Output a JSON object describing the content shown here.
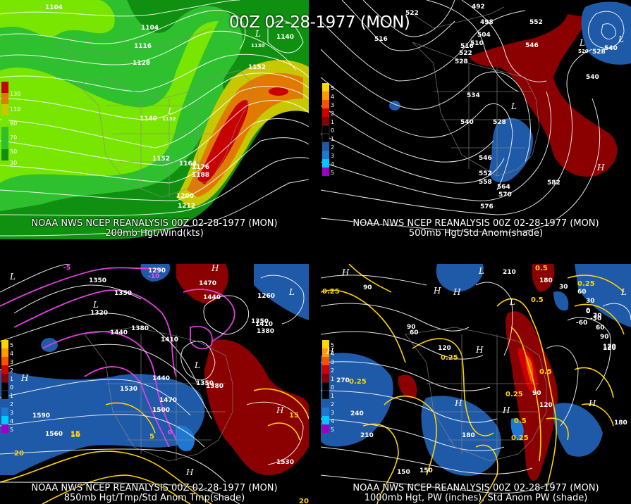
{
  "title": "00Z 02-28-1977 (MON)",
  "panels": [
    {
      "line1": "NOAA NWS NCEP REANALYSIS 00Z 02-28-1977 (MON)",
      "line2": "200mb Hgt/Wind(kts)",
      "colorbar": {
        "labels": [
          "130",
          "110",
          "90",
          "70",
          "50",
          "30"
        ],
        "colors": [
          "#c80000",
          "#e07a00",
          "#c8c800",
          "#78e600",
          "#2fc02f",
          "#109010"
        ]
      },
      "contour_labels": [
        "1104",
        "1104",
        "1116",
        "1128",
        "1140",
        "1130",
        "1140",
        "1152",
        "1152",
        "1164",
        "1176",
        "1188",
        "1200",
        "1212",
        "1132"
      ],
      "pressure_marks": [
        "L",
        "L"
      ]
    },
    {
      "line1": "NOAA NWS NCEP REANALYSIS 00Z 02-28-1977 (MON)",
      "line2": "500mb Hgt/Std Anom(shade)",
      "colorbar": {
        "labels": [
          "5",
          "4",
          "3",
          "2",
          "1",
          "0",
          "1",
          "2",
          "3",
          "4",
          "5"
        ],
        "colors": [
          "#ffd700",
          "#ff9a00",
          "#ff5000",
          "#d00000",
          "#8b0000",
          "#000000",
          "#1e5aa8",
          "#1e78d2",
          "#00c8ff",
          "#00b4b4",
          "#9a00c8"
        ]
      },
      "contour_labels": [
        "492",
        "498",
        "504",
        "510",
        "516",
        "522",
        "528",
        "516",
        "534",
        "540",
        "546",
        "552",
        "558",
        "564",
        "570",
        "576",
        "582",
        "552",
        "528",
        "540",
        "522",
        "528",
        "520",
        "540",
        "546"
      ],
      "pressure_marks": [
        "L",
        "L",
        "L",
        "H"
      ]
    },
    {
      "line1": "NOAA NWS NCEP REANALYSIS 00Z 02-28-1977 (MON)",
      "line2": "850mb Hgt/Tmp/Std Anom Tmp(shade)",
      "colorbar": {
        "labels": [
          "5",
          "4",
          "3",
          "2",
          "1",
          "0",
          "1",
          "2",
          "3",
          "4",
          "5"
        ],
        "colors": [
          "#ffd700",
          "#ff9a00",
          "#ff5000",
          "#d00000",
          "#8b0000",
          "#000000",
          "#1e5aa8",
          "#1e78d2",
          "#00c8ff",
          "#00b4b4",
          "#9a00c8"
        ]
      },
      "contour_labels": [
        "1290",
        "1350",
        "1350",
        "1320",
        "1380",
        "1410",
        "1440",
        "1470",
        "1500",
        "1530",
        "1560",
        "1590",
        "1470",
        "1440",
        "1260",
        "1350",
        "1380",
        "1410",
        "1530",
        "1440",
        "1350",
        "1380"
      ],
      "temp_labels": [
        "15",
        "10",
        "5",
        "20",
        "0",
        "-5",
        "-10",
        "20",
        "15"
      ],
      "pressure_marks": [
        "L",
        "L",
        "L",
        "H",
        "H",
        "H",
        "H",
        "L"
      ]
    },
    {
      "line1": "NOAA NWS NCEP REANALYSIS 00Z 02-28-1977 (MON)",
      "line2": "1000mb Hgt, PW (inches), Std Anom PW (shade)",
      "colorbar": {
        "labels": [
          "5",
          "4",
          "3",
          "2",
          "1",
          "0",
          "1",
          "2",
          "3",
          "4",
          "5"
        ],
        "colors": [
          "#ffd700",
          "#ff9a00",
          "#ff5000",
          "#d00000",
          "#8b0000",
          "#000000",
          "#1e5aa8",
          "#1e78d2",
          "#00c8ff",
          "#00b4b4",
          "#9a00c8"
        ]
      },
      "contour_labels": [
        "210",
        "180",
        "90",
        "60",
        "30",
        "0",
        "-30",
        "-60",
        "120",
        "90",
        "60",
        "30",
        "270",
        "240",
        "210",
        "180",
        "150",
        "120",
        "90",
        "60",
        "30",
        "0",
        "180",
        "120",
        "90",
        "120",
        "150"
      ],
      "pw_labels": [
        "0.25",
        "0.5",
        "0.25",
        "0.5",
        "0.25",
        "0.25",
        "0.25",
        "0.5",
        "0.25",
        "0.5"
      ],
      "pressure_marks": [
        "L",
        "L",
        "H",
        "H",
        "H",
        "H",
        "H",
        "L",
        "H",
        "H",
        "H"
      ]
    }
  ]
}
